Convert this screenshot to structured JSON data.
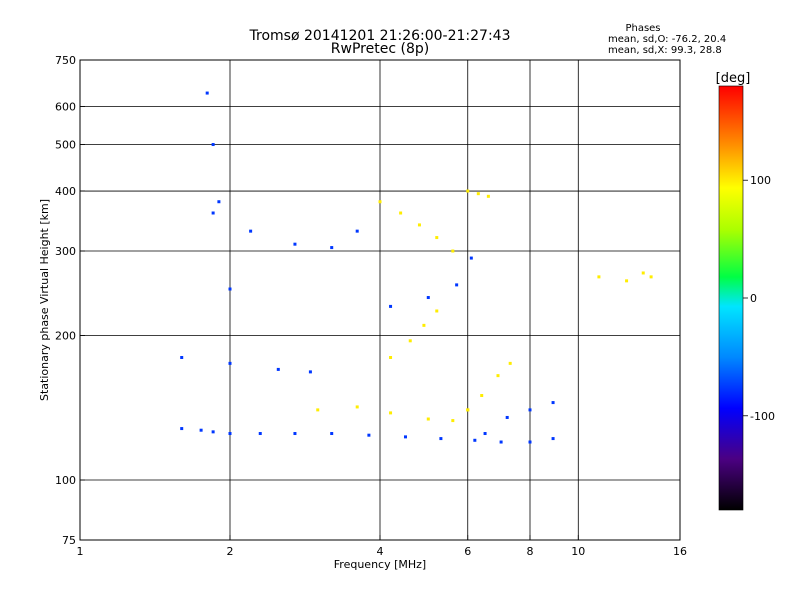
{
  "chart_data": {
    "type": "scatter",
    "title_line1": "Tromsø 20141201 21:26:00-21:27:43",
    "title_line2": "RwPretec (8p)",
    "stats": {
      "heading": "Phases",
      "line_o": "mean, sd,O: -76.2, 20.4",
      "line_x": "mean, sd,X:  99.3, 28.8"
    },
    "xlabel": "Frequency [MHz]",
    "ylabel": "Stationary phase Virtual Height [km]",
    "x_scale": "log",
    "y_scale": "log",
    "xlim": [
      1,
      16
    ],
    "ylim": [
      75,
      750
    ],
    "x_ticks": [
      1,
      2,
      4,
      6,
      8,
      10,
      16
    ],
    "x_tick_labels": [
      "1",
      "2",
      "4",
      "6",
      "8",
      "10",
      "16"
    ],
    "y_ticks": [
      75,
      100,
      200,
      300,
      400,
      500,
      600,
      750
    ],
    "y_tick_labels": [
      "75",
      "100",
      "200",
      "300",
      "400",
      "500",
      "600",
      "750"
    ],
    "x_gridlines": [
      2,
      4,
      6,
      8,
      10
    ],
    "y_gridlines": [
      100,
      200,
      300,
      400,
      500,
      600
    ],
    "colorbar": {
      "label": "[deg]",
      "range": [
        -180,
        180
      ],
      "ticks": [
        -100,
        0,
        100
      ],
      "tick_labels": [
        "-100",
        "0",
        "100"
      ],
      "colormap": "rainbow (black-purple-blue-cyan-green-yellow-red)"
    },
    "series": [
      {
        "mode": "O",
        "approx_mean_phase": -76.2,
        "traces": [
          {
            "x": [
              1.6,
              1.75,
              1.85,
              2.0,
              2.3,
              2.7,
              3.2,
              3.8,
              4.5,
              5.3,
              6.2,
              7.0,
              8.0,
              8.9
            ],
            "y": [
              128,
              127,
              126,
              125,
              125,
              125,
              125,
              124,
              123,
              122,
              121,
              120,
              120,
              122
            ]
          },
          {
            "x": [
              1.8,
              1.85,
              1.9,
              2.0
            ],
            "y": [
              640,
              500,
              380,
              250
            ]
          },
          {
            "x": [
              1.85,
              2.2,
              2.7,
              3.2,
              3.6
            ],
            "y": [
              360,
              330,
              310,
              305,
              330
            ]
          },
          {
            "x": [
              1.6,
              2.0,
              2.5,
              2.9
            ],
            "y": [
              180,
              175,
              170,
              168
            ]
          },
          {
            "x": [
              4.2,
              5.0,
              5.7,
              6.1
            ],
            "y": [
              230,
              240,
              255,
              290
            ]
          },
          {
            "x": [
              6.5,
              7.2,
              8.0,
              8.9
            ],
            "y": [
              125,
              135,
              140,
              145
            ]
          }
        ]
      },
      {
        "mode": "X",
        "approx_mean_phase": 99.3,
        "traces": [
          {
            "x": [
              3.0,
              3.6,
              4.2,
              5.0,
              5.6,
              6.0
            ],
            "y": [
              140,
              142,
              138,
              134,
              133,
              140
            ]
          },
          {
            "x": [
              4.0,
              4.4,
              4.8,
              5.2,
              5.6
            ],
            "y": [
              380,
              360,
              340,
              320,
              300
            ]
          },
          {
            "x": [
              4.2,
              4.6,
              4.9,
              5.2
            ],
            "y": [
              180,
              195,
              210,
              225
            ]
          },
          {
            "x": [
              6.0,
              6.4,
              6.9,
              7.3
            ],
            "y": [
              140,
              150,
              165,
              175
            ]
          },
          {
            "x": [
              6.0,
              6.3,
              6.6
            ],
            "y": [
              400,
              395,
              390
            ]
          },
          {
            "x": [
              11.0,
              12.5,
              13.5,
              14.0
            ],
            "y": [
              265,
              260,
              270,
              265
            ]
          }
        ]
      }
    ]
  }
}
